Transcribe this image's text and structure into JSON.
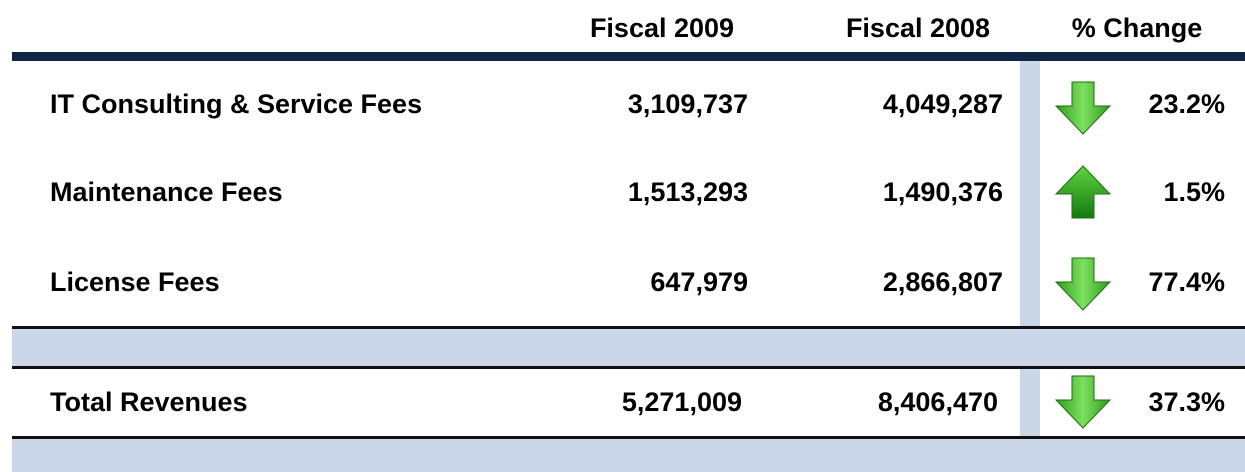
{
  "table": {
    "header": [
      "Fiscal 2009",
      "Fiscal 2008",
      "% Change"
    ],
    "rows": [
      [
        "IT Consulting & Service Fees",
        "3,109,737",
        "4,049,287",
        "23.2%"
      ],
      [
        "Maintenance Fees",
        "1,513,293",
        "1,490,376",
        "1.5%"
      ],
      [
        "License Fees",
        "647,979",
        "2,866,807",
        "77.4%"
      ]
    ],
    "total": [
      "Total Revenues",
      "5,271,009",
      "8,406,470",
      "37.3%"
    ]
  }
}
